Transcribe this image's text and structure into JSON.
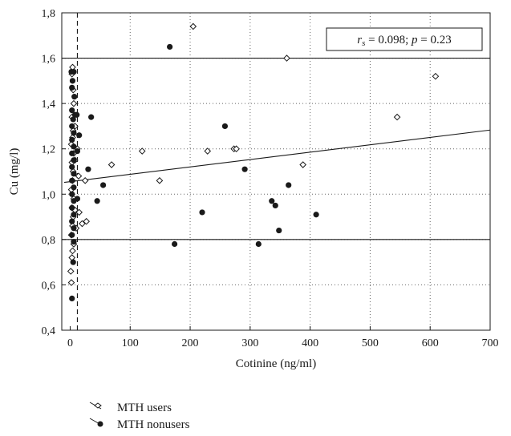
{
  "chart_data": {
    "type": "scatter",
    "xlabel": "Cotinine (ng/ml)",
    "ylabel": "Cu (mg/l)",
    "xlim": [
      0,
      700
    ],
    "ylim": [
      0.4,
      1.8
    ],
    "x_ticks": [
      "0",
      "100",
      "200",
      "300",
      "400",
      "500",
      "600",
      "700"
    ],
    "y_ticks": [
      "0,4",
      "0,6",
      "0,8",
      "1,0",
      "1,2",
      "1,4",
      "1,6",
      "1,8"
    ],
    "grid": "dotted",
    "annotation": {
      "r_symbol": "r",
      "r_sub": "s",
      "text": " = 0.098; ",
      "p_symbol": "p",
      "p_text": " = 0.23"
    },
    "reference_lines": {
      "horizontal": [
        0.8,
        1.6
      ],
      "vertical_dashed_x": 12
    },
    "regression_line": {
      "x": [
        -10,
        700
      ],
      "y": [
        1.052,
        1.283
      ]
    },
    "legend": [
      {
        "label": "MTH users",
        "marker": "open-diamond"
      },
      {
        "label": "MTH nonusers",
        "marker": "filled-circle"
      }
    ],
    "series": [
      {
        "name": "MTH users",
        "marker": "open-diamond",
        "points": [
          [
            4,
            1.56
          ],
          [
            3,
            1.53
          ],
          [
            5,
            1.46
          ],
          [
            6,
            1.4
          ],
          [
            3,
            1.34
          ],
          [
            5,
            1.28
          ],
          [
            4,
            1.25
          ],
          [
            2,
            1.22
          ],
          [
            6,
            1.18
          ],
          [
            3,
            1.14
          ],
          [
            5,
            1.1
          ],
          [
            4,
            1.06
          ],
          [
            2,
            1.02
          ],
          [
            6,
            0.98
          ],
          [
            3,
            0.94
          ],
          [
            5,
            0.9
          ],
          [
            4,
            0.86
          ],
          [
            2,
            0.82
          ],
          [
            6,
            0.78
          ],
          [
            4,
            0.75
          ],
          [
            3,
            0.72
          ],
          [
            1,
            0.66
          ],
          [
            2,
            0.61
          ],
          [
            8,
            1.3
          ],
          [
            8,
            1.15
          ],
          [
            8,
            0.93
          ],
          [
            10,
            0.85
          ],
          [
            12,
            1.2
          ],
          [
            14,
            1.08
          ],
          [
            15,
            0.92
          ],
          [
            20,
            0.87
          ],
          [
            27,
            0.88
          ],
          [
            25,
            1.06
          ],
          [
            69,
            1.13
          ],
          [
            120,
            1.19
          ],
          [
            149,
            1.06
          ],
          [
            205,
            1.74
          ],
          [
            229,
            1.19
          ],
          [
            273,
            1.2
          ],
          [
            277,
            1.2
          ],
          [
            361,
            1.6
          ],
          [
            388,
            1.13
          ],
          [
            545,
            1.34
          ],
          [
            609,
            1.52
          ]
        ]
      },
      {
        "name": "MTH nonusers",
        "marker": "filled-circle",
        "points": [
          [
            2,
            1.54
          ],
          [
            6,
            1.54
          ],
          [
            4,
            1.5
          ],
          [
            3,
            1.47
          ],
          [
            7,
            1.43
          ],
          [
            3,
            1.37
          ],
          [
            5,
            1.33
          ],
          [
            8,
            1.35
          ],
          [
            3,
            1.3
          ],
          [
            6,
            1.27
          ],
          [
            3,
            1.24
          ],
          [
            6,
            1.21
          ],
          [
            3,
            1.18
          ],
          [
            6,
            1.15
          ],
          [
            3,
            1.12
          ],
          [
            6,
            1.09
          ],
          [
            3,
            1.06
          ],
          [
            6,
            1.03
          ],
          [
            3,
            1.0
          ],
          [
            6,
            0.97
          ],
          [
            3,
            0.94
          ],
          [
            6,
            0.91
          ],
          [
            3,
            0.88
          ],
          [
            6,
            0.85
          ],
          [
            3,
            0.82
          ],
          [
            6,
            0.79
          ],
          [
            5,
            0.7
          ],
          [
            3,
            0.54
          ],
          [
            11,
            1.35
          ],
          [
            12,
            1.19
          ],
          [
            12,
            0.98
          ],
          [
            15,
            1.26
          ],
          [
            30,
            1.11
          ],
          [
            35,
            1.34
          ],
          [
            45,
            0.97
          ],
          [
            55,
            1.04
          ],
          [
            166,
            1.65
          ],
          [
            174,
            0.78
          ],
          [
            220,
            0.92
          ],
          [
            258,
            1.3
          ],
          [
            291,
            1.11
          ],
          [
            314,
            0.78
          ],
          [
            336,
            0.97
          ],
          [
            342,
            0.95
          ],
          [
            348,
            0.84
          ],
          [
            364,
            1.04
          ],
          [
            410,
            0.91
          ]
        ]
      }
    ]
  }
}
